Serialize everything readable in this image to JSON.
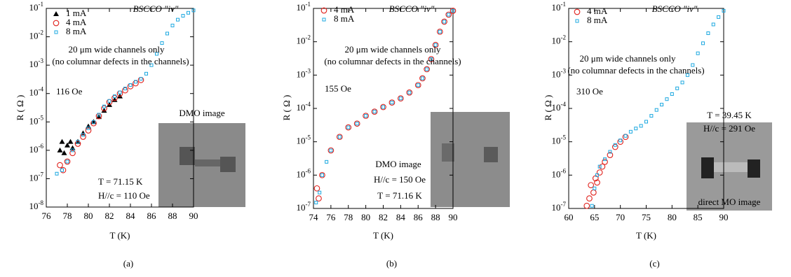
{
  "chart_data": [
    {
      "type": "scatter",
      "title": "BSCCO \"iv\"",
      "xlabel": "T (K)",
      "ylabel": "R ( Ω )",
      "panel_label": "(a)",
      "annotations": [
        "20 μm wide channels only",
        "(no columnar defects in the channels)",
        "116 Oe",
        "DMO image",
        "T = 71.15 K",
        "H//c = 110 Oe"
      ],
      "log_y": true,
      "xlim": [
        76,
        90
      ],
      "xticks": [
        76,
        78,
        80,
        82,
        84,
        86,
        88,
        90
      ],
      "ylim": [
        1e-08,
        0.1
      ],
      "yticks": [
        {
          "value": 1e-08,
          "label": "10-8"
        },
        {
          "value": 1e-07,
          "label": "10-7"
        },
        {
          "value": 1e-06,
          "label": "10-6"
        },
        {
          "value": 1e-05,
          "label": "10-5"
        },
        {
          "value": 0.0001,
          "label": "10-4"
        },
        {
          "value": 0.001,
          "label": "10-3"
        },
        {
          "value": 0.01,
          "label": "10-2"
        },
        {
          "value": 0.1,
          "label": "10-1"
        }
      ],
      "series": [
        {
          "name": "1 mA",
          "color": "#000000",
          "marker": "triangle",
          "x": [
            77.3,
            77.5,
            77.7,
            78,
            78.3,
            78.5,
            79,
            79.5,
            80,
            80.5,
            81,
            81.5,
            82,
            82.5,
            83
          ],
          "values": [
            1e-06,
            2e-06,
            8e-07,
            1.5e-06,
            2e-06,
            1.2e-06,
            2e-06,
            4e-06,
            7e-06,
            1e-05,
            1.5e-05,
            2.5e-05,
            4e-05,
            6e-05,
            8e-05
          ]
        },
        {
          "name": "4 mA",
          "color": "#e0201b",
          "marker": "circle",
          "x": [
            77.3,
            77.6,
            78,
            78.5,
            79,
            79.5,
            80,
            80.5,
            81,
            81.5,
            82,
            82.5,
            83,
            83.5,
            84,
            84.5,
            85
          ],
          "values": [
            3e-07,
            2e-07,
            4e-07,
            8e-07,
            1.7e-06,
            3e-06,
            5e-06,
            9e-06,
            1.6e-05,
            3e-05,
            5e-05,
            7e-05,
            0.0001,
            0.00013,
            0.00018,
            0.00023,
            0.0003
          ]
        },
        {
          "name": "8 mA",
          "color": "#1ca8e0",
          "marker": "square",
          "x": [
            77,
            77.5,
            78,
            78.5,
            79,
            79.5,
            80,
            80.5,
            81,
            81.5,
            82,
            82.5,
            83,
            83.5,
            84,
            84.5,
            85,
            85.5,
            86,
            86.5,
            87,
            87.5,
            88,
            88.5,
            89,
            89.5,
            90
          ],
          "values": [
            1.5e-07,
            2e-07,
            4e-07,
            1e-06,
            2e-06,
            3.5e-06,
            6e-06,
            1e-05,
            1.8e-05,
            3.5e-05,
            5.5e-05,
            8e-05,
            0.00011,
            0.00015,
            0.0002,
            0.00026,
            0.00033,
            0.0005,
            0.001,
            0.0025,
            0.006,
            0.013,
            0.025,
            0.04,
            0.055,
            0.07,
            0.085
          ]
        }
      ]
    },
    {
      "type": "scatter",
      "title": "BSCCO \"iv\"",
      "xlabel": "T (K)",
      "ylabel": "R ( Ω )",
      "panel_label": "(b)",
      "annotations": [
        "20 μm wide channels only",
        "(no columnar defects in the channels)",
        "155 Oe",
        "DMO image",
        "H//c = 150 Oe",
        "T = 71.16 K"
      ],
      "log_y": true,
      "xlim": [
        74,
        90
      ],
      "xticks": [
        74,
        76,
        78,
        80,
        82,
        84,
        86,
        88,
        90
      ],
      "ylim": [
        1e-07,
        0.1
      ],
      "yticks": [
        {
          "value": 1e-07,
          "label": "10-7"
        },
        {
          "value": 1e-06,
          "label": "10-6"
        },
        {
          "value": 1e-05,
          "label": "10-5"
        },
        {
          "value": 0.0001,
          "label": "10-4"
        },
        {
          "value": 0.001,
          "label": "10-3"
        },
        {
          "value": 0.01,
          "label": "10-2"
        },
        {
          "value": 0.1,
          "label": "10-1"
        }
      ],
      "series": [
        {
          "name": "4 mA",
          "color": "#e0201b",
          "marker": "circle",
          "x": [
            74.4,
            74.6,
            75,
            76,
            77,
            78,
            79,
            80,
            81,
            82,
            83,
            84,
            85,
            86,
            86.5,
            87,
            87.5,
            88,
            88.5,
            89,
            89.5,
            90
          ],
          "values": [
            4e-07,
            2e-07,
            1e-06,
            5.5e-06,
            1.4e-05,
            2.7e-05,
            3.5e-05,
            6e-05,
            8e-05,
            0.00011,
            0.00015,
            0.0002,
            0.0003,
            0.0005,
            0.0008,
            0.0015,
            0.003,
            0.008,
            0.02,
            0.04,
            0.065,
            0.085
          ]
        },
        {
          "name": "8 mA",
          "color": "#1ca8e0",
          "marker": "square",
          "x": [
            74.3,
            74.7,
            75,
            75.5,
            76,
            77,
            78,
            79,
            80,
            81,
            82,
            83,
            84,
            85,
            86,
            86.5,
            87,
            87.5,
            88,
            88.5,
            89,
            89.5,
            90
          ],
          "values": [
            1.5e-07,
            3e-07,
            1e-06,
            2.5e-06,
            5.5e-06,
            1.4e-05,
            2.7e-05,
            3.5e-05,
            6e-05,
            8e-05,
            0.00011,
            0.00015,
            0.0002,
            0.0003,
            0.0005,
            0.0008,
            0.0015,
            0.003,
            0.008,
            0.02,
            0.04,
            0.065,
            0.085
          ]
        }
      ]
    },
    {
      "type": "scatter",
      "title": "BSCCO \"iv\"",
      "xlabel": "T (K)",
      "ylabel": "R ( Ω )",
      "panel_label": "(c)",
      "annotations": [
        "20 μm wide channels only",
        "(no columnar defects in the channels)",
        "310 Oe",
        "T = 39.45 K",
        "H//c = 291 Oe",
        "direct MO image"
      ],
      "log_y": true,
      "xlim": [
        60,
        90
      ],
      "xticks": [
        60,
        65,
        70,
        75,
        80,
        85,
        90
      ],
      "ylim": [
        1e-07,
        0.1
      ],
      "yticks": [
        {
          "value": 1e-07,
          "label": "10-7"
        },
        {
          "value": 1e-06,
          "label": "10-6"
        },
        {
          "value": 1e-05,
          "label": "10-5"
        },
        {
          "value": 0.0001,
          "label": "10-4"
        },
        {
          "value": 0.001,
          "label": "10-3"
        },
        {
          "value": 0.01,
          "label": "10-2"
        },
        {
          "value": 0.1,
          "label": "10-1"
        }
      ],
      "series": [
        {
          "name": "4 mA",
          "color": "#e0201b",
          "marker": "circle",
          "x": [
            63.5,
            64,
            64.3,
            64.8,
            65.2,
            65.5,
            66,
            66.5,
            67,
            68,
            69,
            70,
            71
          ],
          "values": [
            1.2e-07,
            2e-07,
            5e-07,
            3e-07,
            8e-07,
            6e-07,
            1.2e-06,
            1.8e-06,
            2.5e-06,
            4e-06,
            7e-06,
            1e-05,
            1.4e-05
          ]
        },
        {
          "name": "8 mA",
          "color": "#1ca8e0",
          "marker": "square",
          "x": [
            64.5,
            65,
            65.5,
            66,
            67,
            68,
            69,
            70,
            71,
            72,
            73,
            74,
            75,
            76,
            77,
            78,
            79,
            80,
            81,
            82,
            83,
            84,
            85,
            86,
            87,
            88,
            89,
            90
          ],
          "values": [
            1.2e-07,
            4e-07,
            1e-06,
            1.8e-06,
            3e-06,
            5e-06,
            8e-06,
            1.1e-05,
            1.5e-05,
            2e-05,
            2.5e-05,
            3e-05,
            4e-05,
            6e-05,
            9e-05,
            0.00013,
            0.00019,
            0.00027,
            0.0004,
            0.0006,
            0.001,
            0.002,
            0.0045,
            0.009,
            0.018,
            0.033,
            0.055,
            0.085
          ]
        }
      ]
    }
  ]
}
